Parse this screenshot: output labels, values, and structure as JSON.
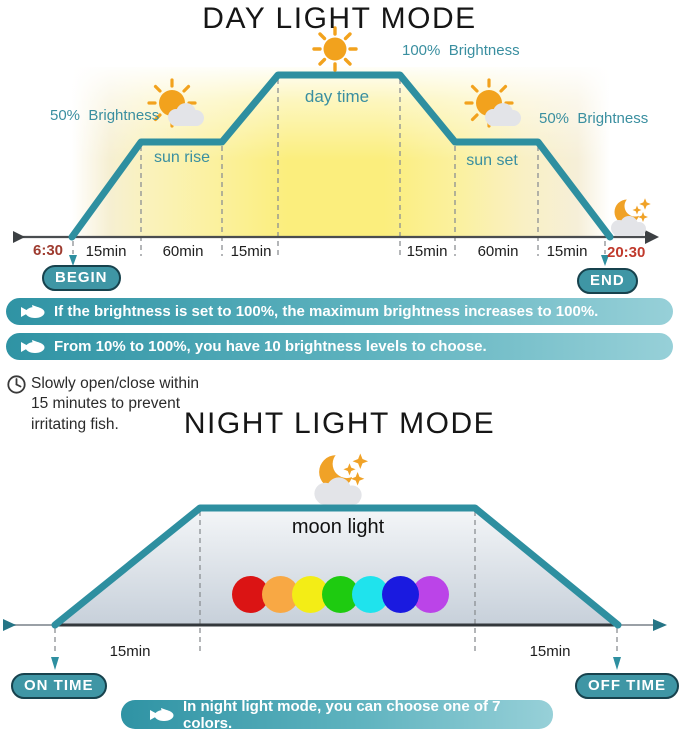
{
  "day": {
    "title": "DAY LIGHT MODE",
    "brightness_100": "100%  Brightness",
    "brightness_50_left": "50%  Brightness",
    "brightness_50_right": "50%  Brightness",
    "day_time_label": "day time",
    "sun_rise_label": "sun rise",
    "sun_set_label": "sun set",
    "begin_time": "6:30",
    "end_time": "20:30",
    "begin_badge": "BEGIN",
    "end_badge": "END",
    "intervals": [
      "15min",
      "60min",
      "15min",
      "15min",
      "60min",
      "15min"
    ]
  },
  "notes": {
    "banner1": "If the brightness is set to 100%, the maximum brightness increases to 100%.",
    "banner2": "From 10% to 100%, you have 10 brightness levels to choose.",
    "clock_note": "Slowly open/close within 15 minutes to prevent irritating fish."
  },
  "night": {
    "title": "NIGHT LIGHT MODE",
    "moon_light_label": "moon light",
    "interval_left": "15min",
    "interval_right": "15min",
    "on_badge": "ON TIME",
    "off_badge": "OFF TIME",
    "banner": "In night light mode, you can choose one of 7 colors.",
    "colors": [
      "#db1414",
      "#f8a844",
      "#f3ed16",
      "#1ecb10",
      "#1fe3ed",
      "#1a1ae0",
      "#bb44e8"
    ]
  },
  "palette": {
    "teal_line": "#2e8fa0",
    "teal_text": "#3a8fa0",
    "badge": "#3f96a5",
    "banner_left": "#2f93a4",
    "banner_right": "#97d0d8",
    "begin_time_color": "#9e3b2f",
    "end_time_color": "#c0392c",
    "sun_color": "#f2a21d",
    "cloud_color": "#e3e4e8"
  }
}
